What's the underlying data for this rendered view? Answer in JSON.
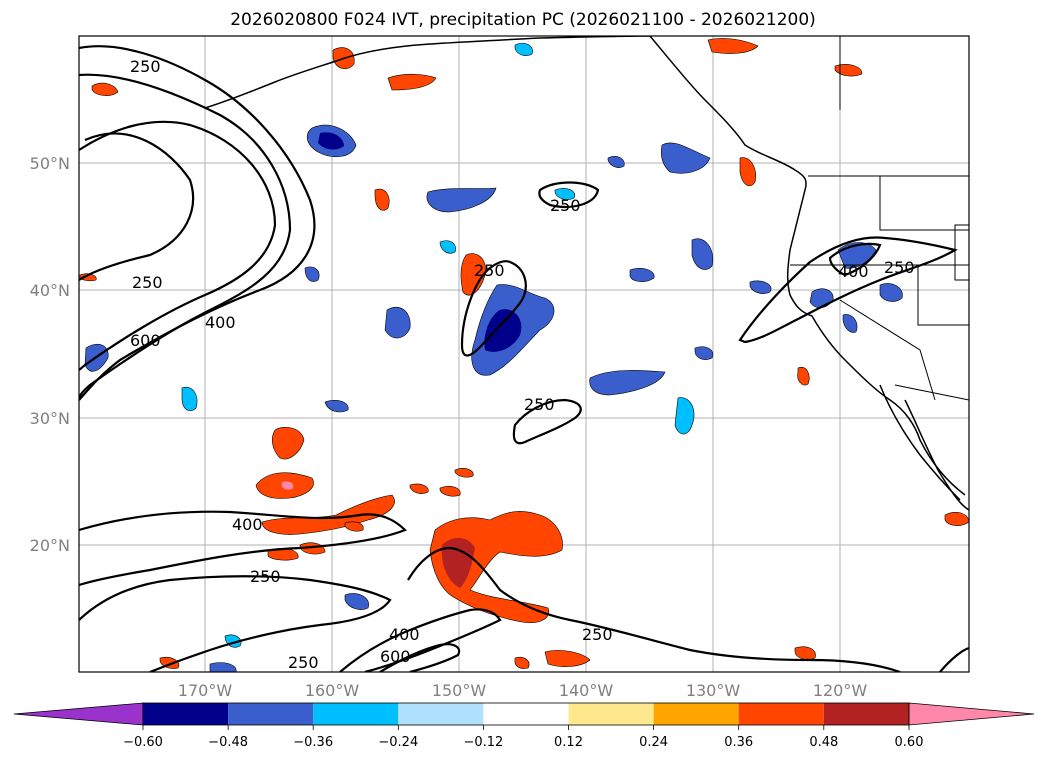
{
  "title": "2026020800 F024 IVT, precipitation PC (2026021100 - 2026021200)",
  "lat_labels": [
    "50°N",
    "40°N",
    "30°N",
    "20°N"
  ],
  "lon_labels": [
    "170°W",
    "160°W",
    "150°W",
    "140°W",
    "130°W",
    "120°W"
  ],
  "colorbar": {
    "ticks": [
      "−0.60",
      "−0.48",
      "−0.36",
      "−0.24",
      "−0.12",
      "0.12",
      "0.24",
      "0.36",
      "0.48",
      "0.60"
    ],
    "colors": [
      "#9933cc",
      "#00008b",
      "#3a5fcd",
      "#00bfff",
      "#b0e2ff",
      "#ffffff",
      "#ffe98c",
      "#ffa500",
      "#ff4500",
      "#b22222",
      "#ff88aa"
    ]
  },
  "contour_labels": {
    "c250_nw": "250",
    "c250_w": "250",
    "c600_w": "600",
    "c400_w": "400",
    "c250_center": "250",
    "c250_north": "250",
    "c250_mid": "250",
    "c400_ne": "400",
    "c250_ne": "250",
    "c400_sw": "400",
    "c250_sw": "250",
    "c400_s": "400",
    "c600_s": "600",
    "c250_s": "250",
    "c250_se": "250"
  }
}
